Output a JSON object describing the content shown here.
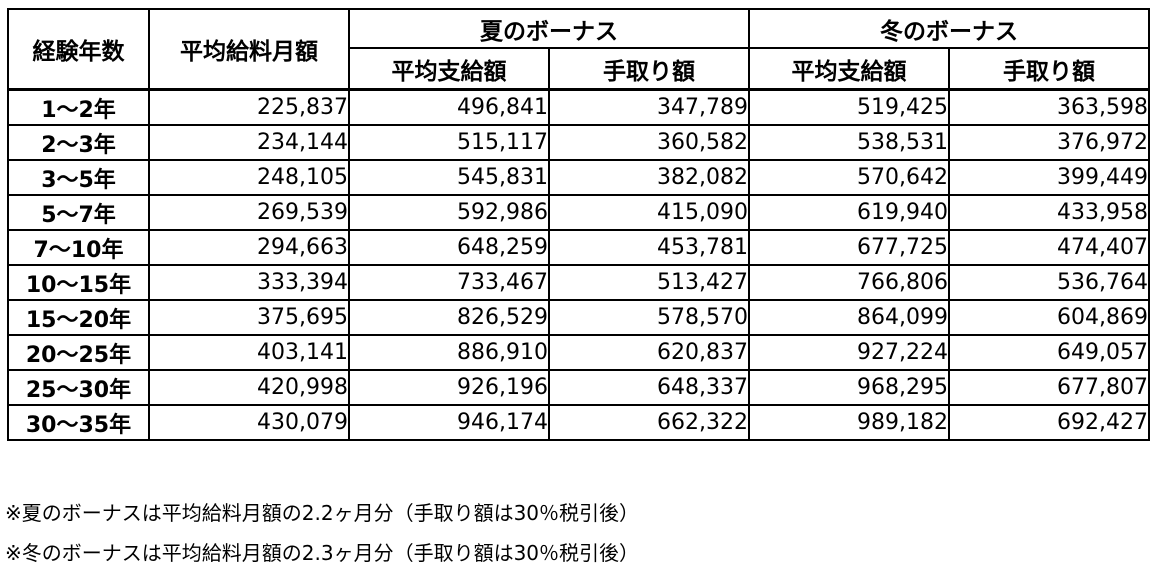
{
  "table": {
    "headers": {
      "experience": "経験年数",
      "avg_monthly_salary": "平均給料月額",
      "summer_bonus": "夏のボーナス",
      "winter_bonus": "冬のボーナス",
      "summer_avg_paid": "平均支給額",
      "summer_take_home": "手取り額",
      "winter_avg_paid": "平均支給額",
      "winter_take_home": "手取り額"
    },
    "rows": [
      {
        "years": "1〜2年",
        "salary": "225,837",
        "summer_paid": "496,841",
        "summer_net": "347,789",
        "winter_paid": "519,425",
        "winter_net": "363,598"
      },
      {
        "years": "2〜3年",
        "salary": "234,144",
        "summer_paid": "515,117",
        "summer_net": "360,582",
        "winter_paid": "538,531",
        "winter_net": "376,972"
      },
      {
        "years": "3〜5年",
        "salary": "248,105",
        "summer_paid": "545,831",
        "summer_net": "382,082",
        "winter_paid": "570,642",
        "winter_net": "399,449"
      },
      {
        "years": "5〜7年",
        "salary": "269,539",
        "summer_paid": "592,986",
        "summer_net": "415,090",
        "winter_paid": "619,940",
        "winter_net": "433,958"
      },
      {
        "years": "7〜10年",
        "salary": "294,663",
        "summer_paid": "648,259",
        "summer_net": "453,781",
        "winter_paid": "677,725",
        "winter_net": "474,407"
      },
      {
        "years": "10〜15年",
        "salary": "333,394",
        "summer_paid": "733,467",
        "summer_net": "513,427",
        "winter_paid": "766,806",
        "winter_net": "536,764"
      },
      {
        "years": "15〜20年",
        "salary": "375,695",
        "summer_paid": "826,529",
        "summer_net": "578,570",
        "winter_paid": "864,099",
        "winter_net": "604,869"
      },
      {
        "years": "20〜25年",
        "salary": "403,141",
        "summer_paid": "886,910",
        "summer_net": "620,837",
        "winter_paid": "927,224",
        "winter_net": "649,057"
      },
      {
        "years": "25〜30年",
        "salary": "420,998",
        "summer_paid": "926,196",
        "summer_net": "648,337",
        "winter_paid": "968,295",
        "winter_net": "677,807"
      },
      {
        "years": "30〜35年",
        "salary": "430,079",
        "summer_paid": "946,174",
        "summer_net": "662,322",
        "winter_paid": "989,182",
        "winter_net": "692,427"
      }
    ]
  },
  "notes": [
    "※夏のボーナスは平均給料月額の2.2ヶ月分（手取り額は30％税引後）",
    "※冬のボーナスは平均給料月額の2.3ヶ月分（手取り額は30％税引後）"
  ]
}
